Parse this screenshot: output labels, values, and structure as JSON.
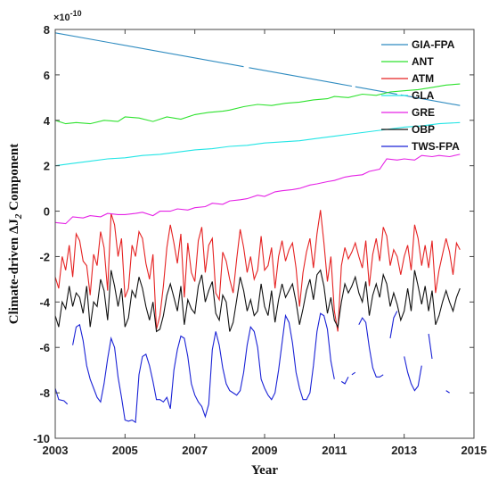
{
  "chart_data": {
    "type": "line",
    "title": "",
    "xlabel": "Year",
    "ylabel_prefix": "Climate-driven ΔJ",
    "ylabel_subscript": "2",
    "ylabel_suffix": " Component",
    "y_exponent_label": "×10",
    "y_exponent_power": "-10",
    "xlim": [
      2003,
      2015
    ],
    "ylim": [
      -10,
      8
    ],
    "xticks": [
      2003,
      2005,
      2007,
      2009,
      2011,
      2013,
      2015
    ],
    "xtick_labels": [
      "2003",
      "2005",
      "2007",
      "2009",
      "2011",
      "2013",
      "2015"
    ],
    "yticks": [
      -10,
      -8,
      -6,
      -4,
      -2,
      0,
      2,
      4,
      6,
      8
    ],
    "ytick_labels": [
      "-10",
      "-8",
      "-6",
      "-4",
      "-2",
      "0",
      "2",
      "4",
      "6",
      "8"
    ],
    "grid": false,
    "legend_position": "top-right",
    "series": [
      {
        "name": "GIA-FPA",
        "color": "#2e8bc0",
        "x": [
          2003.0,
          2014.6
        ],
        "y": [
          7.85,
          4.65
        ],
        "gaps": [
          [
            2008.4,
            2008.55
          ],
          [
            2011.5,
            2011.6
          ],
          [
            2012.8,
            2012.9
          ]
        ]
      },
      {
        "name": "ANT",
        "color": "#2ee22e",
        "x": [
          2003.0,
          2003.3,
          2003.6,
          2004.0,
          2004.4,
          2004.8,
          2005.0,
          2005.4,
          2005.8,
          2006.2,
          2006.6,
          2007.0,
          2007.4,
          2007.8,
          2008.0,
          2008.4,
          2008.8,
          2009.2,
          2009.6,
          2010.0,
          2010.4,
          2010.8,
          2011.0,
          2011.4,
          2011.8,
          2012.2,
          2012.6,
          2013.0,
          2013.4,
          2013.8,
          2014.2,
          2014.6
        ],
        "y": [
          4.0,
          3.85,
          3.9,
          3.85,
          4.0,
          3.95,
          4.15,
          4.1,
          3.95,
          4.15,
          4.05,
          4.25,
          4.35,
          4.4,
          4.45,
          4.6,
          4.7,
          4.65,
          4.75,
          4.8,
          4.9,
          4.95,
          5.05,
          5.0,
          5.15,
          5.1,
          5.25,
          5.3,
          5.35,
          5.45,
          5.55,
          5.6
        ]
      },
      {
        "name": "ATM",
        "color": "#e52222",
        "x": [
          2003.0,
          2003.1,
          2003.2,
          2003.3,
          2003.4,
          2003.5,
          2003.6,
          2003.7,
          2003.8,
          2003.9,
          2004.0,
          2004.1,
          2004.2,
          2004.3,
          2004.4,
          2004.5,
          2004.6,
          2004.7,
          2004.8,
          2004.9,
          2005.0,
          2005.1,
          2005.2,
          2005.3,
          2005.4,
          2005.5,
          2005.6,
          2005.7,
          2005.8,
          2005.9,
          2006.0,
          2006.1,
          2006.2,
          2006.3,
          2006.4,
          2006.5,
          2006.6,
          2006.7,
          2006.8,
          2006.9,
          2007.0,
          2007.1,
          2007.2,
          2007.3,
          2007.4,
          2007.5,
          2007.6,
          2007.7,
          2007.8,
          2007.9,
          2008.0,
          2008.1,
          2008.2,
          2008.3,
          2008.4,
          2008.5,
          2008.6,
          2008.7,
          2008.8,
          2008.9,
          2009.0,
          2009.1,
          2009.2,
          2009.3,
          2009.4,
          2009.5,
          2009.6,
          2009.7,
          2009.8,
          2009.9,
          2010.0,
          2010.1,
          2010.2,
          2010.3,
          2010.4,
          2010.5,
          2010.6,
          2010.7,
          2010.8,
          2010.9,
          2011.0,
          2011.1,
          2011.2,
          2011.3,
          2011.4,
          2011.5,
          2011.6,
          2011.7,
          2011.8,
          2011.9,
          2012.0,
          2012.1,
          2012.2,
          2012.3,
          2012.4,
          2012.5,
          2012.6,
          2012.7,
          2012.8,
          2012.9,
          2013.0,
          2013.1,
          2013.2,
          2013.3,
          2013.4,
          2013.5,
          2013.6,
          2013.7,
          2013.8,
          2013.9,
          2014.0,
          2014.1,
          2014.2,
          2014.3,
          2014.4,
          2014.5,
          2014.6
        ],
        "y": [
          -2.9,
          -3.4,
          -2.0,
          -2.6,
          -1.5,
          -2.9,
          -1.0,
          -1.3,
          -2.2,
          -2.4,
          -3.7,
          -1.9,
          -2.4,
          -0.9,
          -1.6,
          -3.5,
          -0.1,
          -0.6,
          -2.0,
          -1.2,
          -3.8,
          -3.4,
          -1.5,
          -2.0,
          -0.9,
          -1.2,
          -2.3,
          -3.0,
          -1.9,
          -5.2,
          -4.6,
          -3.3,
          -1.6,
          -0.6,
          -1.4,
          -2.3,
          -1.0,
          -3.8,
          -1.4,
          -2.7,
          -3.1,
          -1.3,
          -0.7,
          -2.7,
          -1.5,
          -1.2,
          -3.6,
          -3.9,
          -1.8,
          -2.2,
          -3.0,
          -3.6,
          -2.1,
          -0.8,
          -1.6,
          -2.7,
          -2.0,
          -3.0,
          -2.6,
          -1.1,
          -2.6,
          -2.4,
          -1.6,
          -3.4,
          -2.0,
          -1.3,
          -2.2,
          -1.7,
          -1.4,
          -2.5,
          -4.2,
          -2.7,
          -1.8,
          -1.2,
          -2.5,
          -1.0,
          0.05,
          -1.4,
          -3.1,
          -2.0,
          -4.4,
          -5.3,
          -2.4,
          -1.6,
          -2.1,
          -1.8,
          -1.4,
          -2.0,
          -2.5,
          -1.3,
          -3.3,
          -1.9,
          -1.2,
          -2.2,
          -0.7,
          -1.1,
          -2.4,
          -1.7,
          -2.0,
          -2.8,
          -2.0,
          -1.5,
          -2.6,
          -0.6,
          -1.2,
          -2.4,
          -1.5,
          -2.5,
          -1.3,
          -3.6,
          -2.6,
          -1.9,
          -1.2,
          -1.8,
          -2.8,
          -1.4,
          -1.7
        ]
      },
      {
        "name": "GLA",
        "color": "#22e5e5",
        "x": [
          2003.0,
          2003.5,
          2004.0,
          2004.5,
          2005.0,
          2005.5,
          2006.0,
          2006.5,
          2007.0,
          2007.5,
          2008.0,
          2008.5,
          2009.0,
          2009.5,
          2010.0,
          2010.5,
          2011.0,
          2011.5,
          2012.0,
          2012.5,
          2013.0,
          2013.5,
          2014.0,
          2014.6
        ],
        "y": [
          2.0,
          2.1,
          2.2,
          2.3,
          2.35,
          2.45,
          2.5,
          2.6,
          2.7,
          2.75,
          2.85,
          2.9,
          3.0,
          3.05,
          3.1,
          3.2,
          3.3,
          3.4,
          3.5,
          3.6,
          3.7,
          3.75,
          3.85,
          3.9
        ]
      },
      {
        "name": "GRE",
        "color": "#e522e5",
        "x": [
          2003.0,
          2003.3,
          2003.5,
          2003.8,
          2004.0,
          2004.3,
          2004.5,
          2004.8,
          2005.0,
          2005.3,
          2005.5,
          2005.8,
          2006.0,
          2006.3,
          2006.5,
          2006.8,
          2007.0,
          2007.3,
          2007.5,
          2007.8,
          2008.0,
          2008.3,
          2008.5,
          2008.8,
          2009.0,
          2009.3,
          2009.5,
          2009.8,
          2010.0,
          2010.3,
          2010.5,
          2010.8,
          2011.0,
          2011.3,
          2011.5,
          2011.8,
          2012.0,
          2012.3,
          2012.5,
          2012.8,
          2013.0,
          2013.3,
          2013.5,
          2013.8,
          2014.0,
          2014.3,
          2014.6
        ],
        "y": [
          -0.5,
          -0.55,
          -0.25,
          -0.3,
          -0.2,
          -0.25,
          -0.1,
          -0.15,
          -0.15,
          -0.1,
          -0.05,
          -0.2,
          0.0,
          0.0,
          0.1,
          0.05,
          0.15,
          0.2,
          0.35,
          0.3,
          0.45,
          0.5,
          0.55,
          0.7,
          0.65,
          0.85,
          0.9,
          0.95,
          1.0,
          1.15,
          1.2,
          1.3,
          1.35,
          1.5,
          1.55,
          1.6,
          1.75,
          1.85,
          2.3,
          2.25,
          2.3,
          2.25,
          2.45,
          2.4,
          2.45,
          2.4,
          2.5
        ]
      },
      {
        "name": "OBP",
        "color": "#111111",
        "x": [
          2003.0,
          2003.1,
          2003.2,
          2003.3,
          2003.4,
          2003.5,
          2003.6,
          2003.7,
          2003.8,
          2003.9,
          2004.0,
          2004.1,
          2004.2,
          2004.3,
          2004.4,
          2004.5,
          2004.6,
          2004.7,
          2004.8,
          2004.9,
          2005.0,
          2005.1,
          2005.2,
          2005.3,
          2005.4,
          2005.5,
          2005.6,
          2005.7,
          2005.8,
          2005.9,
          2006.0,
          2006.1,
          2006.2,
          2006.3,
          2006.4,
          2006.5,
          2006.6,
          2006.7,
          2006.8,
          2006.9,
          2007.0,
          2007.1,
          2007.2,
          2007.3,
          2007.4,
          2007.5,
          2007.6,
          2007.7,
          2007.8,
          2007.9,
          2008.0,
          2008.1,
          2008.2,
          2008.3,
          2008.4,
          2008.5,
          2008.6,
          2008.7,
          2008.8,
          2008.9,
          2009.0,
          2009.1,
          2009.2,
          2009.3,
          2009.4,
          2009.5,
          2009.6,
          2009.7,
          2009.8,
          2009.9,
          2010.0,
          2010.1,
          2010.2,
          2010.3,
          2010.4,
          2010.5,
          2010.6,
          2010.7,
          2010.8,
          2010.9,
          2011.0,
          2011.1,
          2011.2,
          2011.3,
          2011.4,
          2011.5,
          2011.6,
          2011.7,
          2011.8,
          2011.9,
          2012.0,
          2012.1,
          2012.2,
          2012.3,
          2012.4,
          2012.5,
          2012.6,
          2012.7,
          2012.8,
          2012.9,
          2013.0,
          2013.1,
          2013.2,
          2013.3,
          2013.4,
          2013.5,
          2013.6,
          2013.7,
          2013.8,
          2013.9,
          2014.0,
          2014.1,
          2014.2,
          2014.3,
          2014.4,
          2014.5,
          2014.6
        ],
        "y": [
          -4.6,
          -5.1,
          -4.0,
          -4.3,
          -3.3,
          -4.2,
          -3.6,
          -3.8,
          -4.5,
          -3.3,
          -5.1,
          -4.0,
          -4.2,
          -3.0,
          -3.5,
          -4.8,
          -2.6,
          -3.3,
          -4.2,
          -3.4,
          -5.1,
          -4.7,
          -3.5,
          -3.8,
          -2.9,
          -3.4,
          -4.2,
          -4.8,
          -4.0,
          -5.3,
          -5.2,
          -4.6,
          -3.7,
          -3.2,
          -3.8,
          -4.4,
          -3.3,
          -5.0,
          -3.9,
          -4.3,
          -4.5,
          -3.3,
          -2.8,
          -4.0,
          -3.5,
          -3.1,
          -4.5,
          -4.8,
          -3.7,
          -4.0,
          -5.3,
          -4.9,
          -3.9,
          -2.9,
          -3.5,
          -4.4,
          -3.9,
          -4.6,
          -4.4,
          -3.2,
          -4.2,
          -4.6,
          -3.5,
          -4.9,
          -3.9,
          -3.2,
          -3.8,
          -3.5,
          -3.2,
          -4.0,
          -5.0,
          -4.3,
          -3.5,
          -3.0,
          -3.9,
          -2.8,
          -2.6,
          -3.3,
          -4.5,
          -3.8,
          -4.8,
          -5.1,
          -4.0,
          -3.2,
          -3.6,
          -3.3,
          -2.9,
          -3.6,
          -4.0,
          -3.1,
          -4.6,
          -3.7,
          -3.2,
          -3.8,
          -2.8,
          -3.2,
          -4.2,
          -3.6,
          -4.1,
          -4.8,
          -4.4,
          -3.4,
          -4.4,
          -2.6,
          -3.3,
          -4.1,
          -3.3,
          -4.4,
          -3.5,
          -5.0,
          -4.6,
          -4.0,
          -3.5,
          -4.0,
          -4.4,
          -3.8,
          -3.4
        ]
      },
      {
        "name": "TWS-FPA",
        "color": "#1a22d6",
        "segments": [
          {
            "x": [
              2003.0,
              2003.1,
              2003.25,
              2003.35
            ],
            "y": [
              -7.8,
              -8.3,
              -8.35,
              -8.5
            ]
          },
          {
            "x": [
              2003.5,
              2003.6,
              2003.7,
              2003.8,
              2003.9,
              2004.0,
              2004.1,
              2004.2,
              2004.3,
              2004.4,
              2004.5,
              2004.6,
              2004.7,
              2004.8,
              2004.9,
              2005.0,
              2005.1,
              2005.2,
              2005.3,
              2005.4,
              2005.5,
              2005.6,
              2005.7,
              2005.8,
              2005.9,
              2006.0,
              2006.1,
              2006.2,
              2006.3,
              2006.4,
              2006.5,
              2006.6,
              2006.7,
              2006.8,
              2006.9,
              2007.0,
              2007.1,
              2007.2,
              2007.3,
              2007.4,
              2007.5,
              2007.6,
              2007.7,
              2007.8,
              2007.9,
              2008.0,
              2008.1,
              2008.2,
              2008.3,
              2008.4,
              2008.5,
              2008.6,
              2008.7,
              2008.8,
              2008.9,
              2009.0,
              2009.1,
              2009.2,
              2009.3,
              2009.4,
              2009.5,
              2009.6,
              2009.7,
              2009.8,
              2009.9,
              2010.0,
              2010.1,
              2010.2,
              2010.3,
              2010.4,
              2010.5,
              2010.6,
              2010.7,
              2010.8,
              2010.9,
              2011.0
            ],
            "y": [
              -5.9,
              -5.1,
              -5.0,
              -5.7,
              -6.8,
              -7.4,
              -7.8,
              -8.2,
              -8.4,
              -7.6,
              -6.5,
              -5.6,
              -6.0,
              -7.3,
              -8.2,
              -9.2,
              -9.25,
              -9.2,
              -9.3,
              -7.2,
              -6.4,
              -6.3,
              -6.8,
              -7.5,
              -8.3,
              -8.3,
              -8.4,
              -8.2,
              -8.7,
              -7.0,
              -6.1,
              -5.5,
              -5.6,
              -6.4,
              -7.6,
              -8.1,
              -8.4,
              -8.6,
              -9.05,
              -8.5,
              -6.1,
              -5.3,
              -5.9,
              -6.9,
              -7.6,
              -7.9,
              -8.0,
              -8.1,
              -7.9,
              -7.1,
              -5.9,
              -5.1,
              -5.3,
              -6.0,
              -7.4,
              -7.8,
              -8.1,
              -8.3,
              -8.0,
              -7.0,
              -5.8,
              -4.6,
              -4.9,
              -5.8,
              -7.1,
              -7.8,
              -8.3,
              -8.3,
              -8.0,
              -6.8,
              -5.3,
              -4.5,
              -4.6,
              -5.2,
              -6.6,
              -7.4
            ]
          },
          {
            "x": [
              2011.2,
              2011.3,
              2011.4
            ],
            "y": [
              -7.5,
              -7.6,
              -7.3
            ]
          },
          {
            "x": [
              2011.5,
              2011.6
            ],
            "y": [
              -7.2,
              -7.1
            ]
          },
          {
            "x": [
              2011.7,
              2011.8,
              2011.9,
              2012.0,
              2012.1,
              2012.2,
              2012.3,
              2012.4
            ],
            "y": [
              -5.0,
              -4.7,
              -4.9,
              -6.0,
              -6.9,
              -7.3,
              -7.3,
              -7.2
            ]
          },
          {
            "x": [
              2012.6,
              2012.7,
              2012.8
            ],
            "y": [
              -5.6,
              -4.7,
              -4.4
            ]
          },
          {
            "x": [
              2013.0,
              2013.1,
              2013.2,
              2013.3,
              2013.4,
              2013.5
            ],
            "y": [
              -6.4,
              -7.1,
              -7.6,
              -7.9,
              -7.7,
              -6.8
            ]
          },
          {
            "x": [
              2013.7,
              2013.8
            ],
            "y": [
              -5.4,
              -6.5
            ]
          },
          {
            "x": [
              2014.2,
              2014.3
            ],
            "y": [
              -7.9,
              -8.0
            ]
          }
        ]
      }
    ]
  }
}
